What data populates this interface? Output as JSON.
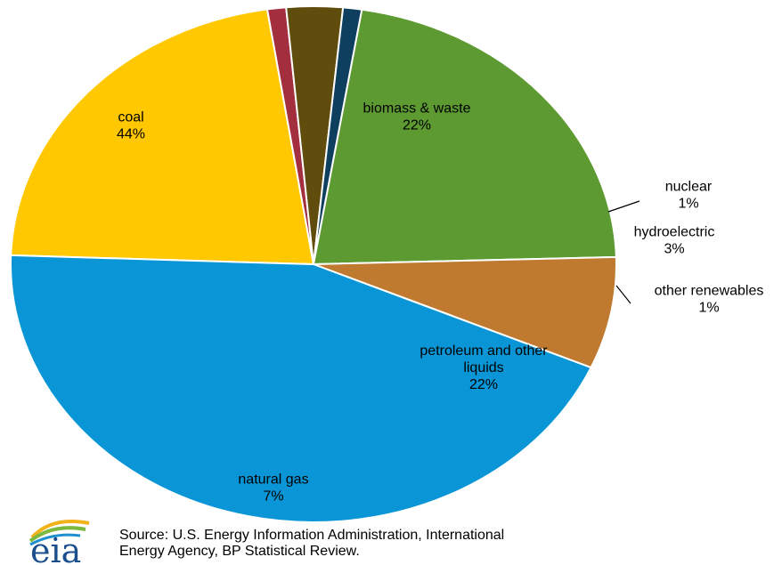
{
  "chart_data": {
    "type": "pie",
    "title": "",
    "slices": [
      {
        "label_lines": [
          "biomass & waste"
        ],
        "pct_label": "22%",
        "value": 22,
        "color": "#FFC800"
      },
      {
        "label_lines": [
          "nuclear"
        ],
        "pct_label": "1%",
        "value": 1,
        "color": "#A32E3E"
      },
      {
        "label_lines": [
          "hydroelectric"
        ],
        "pct_label": "3%",
        "value": 3,
        "color": "#604C0C"
      },
      {
        "label_lines": [
          "other renewables"
        ],
        "pct_label": "1%",
        "value": 1,
        "color": "#0F3F5F"
      },
      {
        "label_lines": [
          "petroleum and other",
          "liquids"
        ],
        "pct_label": "22%",
        "value": 22,
        "color": "#5E9A32"
      },
      {
        "label_lines": [
          "natural gas"
        ],
        "pct_label": "7%",
        "value": 7,
        "color": "#BF7A30"
      },
      {
        "label_lines": [
          "coal"
        ],
        "pct_label": "44%",
        "value": 44,
        "color": "#0A96D6"
      }
    ],
    "legend": "none",
    "labels": "on-slice and callouts"
  },
  "source": {
    "line1": "Source: U.S. Energy Information  Administration, International",
    "line2": "Energy Agency, BP Statistical Review."
  },
  "logo": {
    "text": "eia",
    "icon": "eia-logo-icon"
  }
}
